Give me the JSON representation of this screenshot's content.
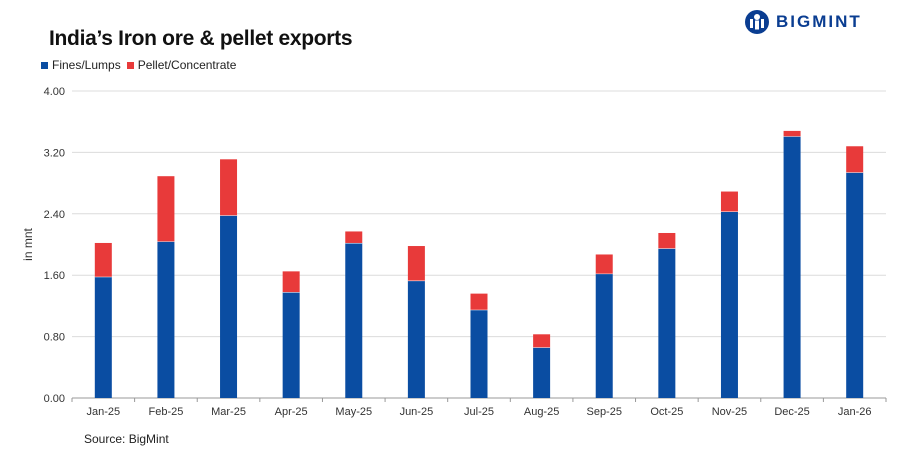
{
  "chart_data": {
    "type": "bar",
    "stacked": true,
    "title": "India’s Iron ore & pellet exports",
    "ylabel": "in mnt",
    "xlabel": "",
    "ylim": [
      0,
      4.0
    ],
    "yticks": [
      "0.00",
      "0.80",
      "1.60",
      "2.40",
      "3.20",
      "4.00"
    ],
    "grid": true,
    "legend_position": "top-left",
    "categories": [
      "Jan-25",
      "Feb-25",
      "Mar-25",
      "Apr-25",
      "May-25",
      "Jun-25",
      "Jul-25",
      "Aug-25",
      "Sep-25",
      "Oct-25",
      "Nov-25",
      "Dec-25",
      "Jan-26"
    ],
    "series": [
      {
        "name": "Fines/Lumps",
        "color": "#0a4da2",
        "values": [
          1.58,
          2.04,
          2.38,
          1.38,
          2.02,
          1.53,
          1.15,
          0.66,
          1.62,
          1.95,
          2.43,
          3.41,
          2.94
        ]
      },
      {
        "name": "Pellet/Concentrate",
        "color": "#e83a3a",
        "values": [
          0.44,
          0.85,
          0.73,
          0.27,
          0.15,
          0.45,
          0.21,
          0.17,
          0.25,
          0.2,
          0.26,
          0.07,
          0.34
        ]
      }
    ],
    "source": "Source: BigMint"
  },
  "brand": {
    "name": "BIGMINT",
    "color": "#0a3d91",
    "icon": "bigmint-logo-icon"
  }
}
